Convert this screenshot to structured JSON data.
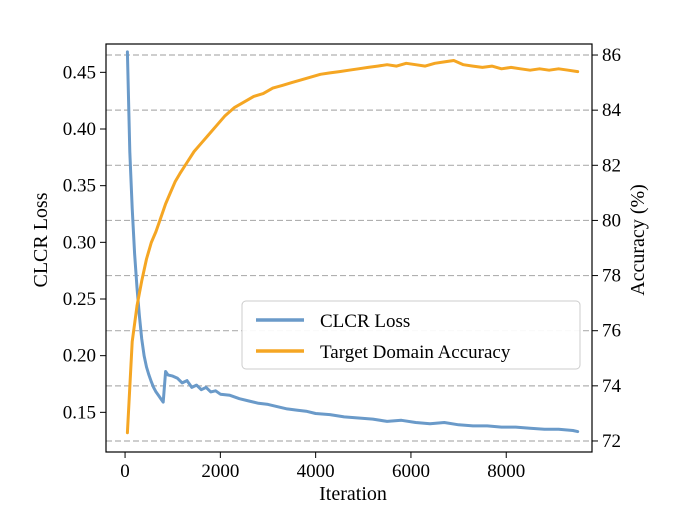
{
  "chart_data": {
    "type": "line",
    "xlabel": "Iteration",
    "ylabel_left": "CLCR Loss",
    "ylabel_right": "Accuracy (%)",
    "xlim": [
      -400,
      9800
    ],
    "ylim_left": [
      0.115,
      0.475
    ],
    "ylim_right": [
      71.6,
      86.4
    ],
    "xticks": [
      0,
      2000,
      4000,
      6000,
      8000
    ],
    "xtick_labels": [
      "0",
      "2000",
      "4000",
      "6000",
      "8000"
    ],
    "yticks_left": [
      0.15,
      0.2,
      0.25,
      0.3,
      0.35,
      0.4,
      0.45
    ],
    "ytick_labels_left": [
      "0.15",
      "0.20",
      "0.25",
      "0.30",
      "0.35",
      "0.40",
      "0.45"
    ],
    "yticks_right": [
      72,
      74,
      76,
      78,
      80,
      82,
      84,
      86
    ],
    "ytick_labels_right": [
      "72",
      "74",
      "76",
      "78",
      "80",
      "82",
      "84",
      "86"
    ],
    "grid": "horizontal dashed at right-axis ticks",
    "legend_position": "center-right",
    "series": [
      {
        "name": "CLCR Loss",
        "axis": "left",
        "color": "#6a9ac9",
        "x": [
          50,
          100,
          150,
          200,
          250,
          300,
          350,
          400,
          450,
          500,
          550,
          600,
          650,
          700,
          750,
          800,
          850,
          900,
          1000,
          1100,
          1200,
          1300,
          1400,
          1500,
          1600,
          1700,
          1800,
          1900,
          2000,
          2200,
          2400,
          2600,
          2800,
          3000,
          3200,
          3400,
          3600,
          3800,
          4000,
          4300,
          4600,
          4900,
          5200,
          5500,
          5800,
          6100,
          6400,
          6700,
          7000,
          7300,
          7600,
          7900,
          8200,
          8500,
          8800,
          9100,
          9400,
          9500
        ],
        "y": [
          0.468,
          0.38,
          0.33,
          0.29,
          0.26,
          0.235,
          0.215,
          0.2,
          0.19,
          0.183,
          0.177,
          0.172,
          0.168,
          0.165,
          0.162,
          0.159,
          0.186,
          0.183,
          0.182,
          0.18,
          0.176,
          0.178,
          0.172,
          0.174,
          0.17,
          0.172,
          0.168,
          0.169,
          0.166,
          0.165,
          0.162,
          0.16,
          0.158,
          0.157,
          0.155,
          0.153,
          0.152,
          0.151,
          0.149,
          0.148,
          0.146,
          0.145,
          0.144,
          0.142,
          0.143,
          0.141,
          0.14,
          0.141,
          0.139,
          0.138,
          0.138,
          0.137,
          0.137,
          0.136,
          0.135,
          0.135,
          0.134,
          0.133
        ]
      },
      {
        "name": "Target Domain Accuracy",
        "axis": "right",
        "color": "#f5a623",
        "x": [
          50,
          150,
          250,
          350,
          450,
          550,
          650,
          750,
          850,
          950,
          1050,
          1150,
          1300,
          1450,
          1600,
          1750,
          1900,
          2100,
          2300,
          2500,
          2700,
          2900,
          3100,
          3300,
          3500,
          3700,
          3900,
          4100,
          4300,
          4500,
          4700,
          4900,
          5100,
          5300,
          5500,
          5700,
          5900,
          6100,
          6300,
          6500,
          6700,
          6900,
          7100,
          7300,
          7500,
          7700,
          7900,
          8100,
          8300,
          8500,
          8700,
          8900,
          9100,
          9300,
          9500
        ],
        "y": [
          72.3,
          75.6,
          76.9,
          77.8,
          78.6,
          79.2,
          79.6,
          80.1,
          80.6,
          81.0,
          81.4,
          81.7,
          82.1,
          82.5,
          82.8,
          83.1,
          83.4,
          83.8,
          84.1,
          84.3,
          84.5,
          84.6,
          84.8,
          84.9,
          85.0,
          85.1,
          85.2,
          85.3,
          85.35,
          85.4,
          85.45,
          85.5,
          85.55,
          85.6,
          85.65,
          85.6,
          85.7,
          85.65,
          85.6,
          85.7,
          85.75,
          85.8,
          85.65,
          85.6,
          85.55,
          85.6,
          85.5,
          85.55,
          85.5,
          85.45,
          85.5,
          85.45,
          85.5,
          85.45,
          85.4
        ]
      }
    ]
  }
}
